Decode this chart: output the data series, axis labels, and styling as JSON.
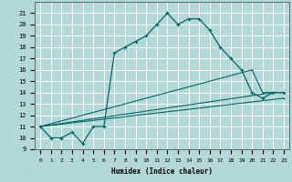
{
  "xlabel": "Humidex (Indice chaleur)",
  "bg_color": "#b2d8d8",
  "line_color": "#006666",
  "grid_color": "#ffffff",
  "xlim": [
    -0.5,
    23.5
  ],
  "ylim": [
    9,
    22
  ],
  "yticks": [
    9,
    10,
    11,
    12,
    13,
    14,
    15,
    16,
    17,
    18,
    19,
    20,
    21
  ],
  "xticks": [
    0,
    1,
    2,
    3,
    4,
    5,
    6,
    7,
    8,
    9,
    10,
    11,
    12,
    13,
    14,
    15,
    16,
    17,
    18,
    19,
    20,
    21,
    22,
    23
  ],
  "main_line": {
    "x": [
      0,
      1,
      2,
      3,
      4,
      5,
      6,
      7,
      8,
      9,
      10,
      11,
      12,
      13,
      14,
      15,
      16,
      17,
      18,
      19,
      20,
      21,
      22,
      23
    ],
    "y": [
      11,
      10,
      10,
      10.5,
      9.5,
      11,
      11,
      17.5,
      18,
      18.5,
      19,
      20,
      21,
      20,
      20.5,
      20.5,
      19.5,
      18,
      17,
      16,
      14,
      13.5,
      14,
      14
    ]
  },
  "fan_lines": [
    {
      "x": [
        0,
        20,
        21,
        22,
        23
      ],
      "y": [
        11,
        16,
        14,
        14,
        14
      ]
    },
    {
      "x": [
        0,
        22,
        23
      ],
      "y": [
        11,
        14,
        14
      ]
    },
    {
      "x": [
        0,
        23
      ],
      "y": [
        11,
        13.5
      ]
    }
  ]
}
